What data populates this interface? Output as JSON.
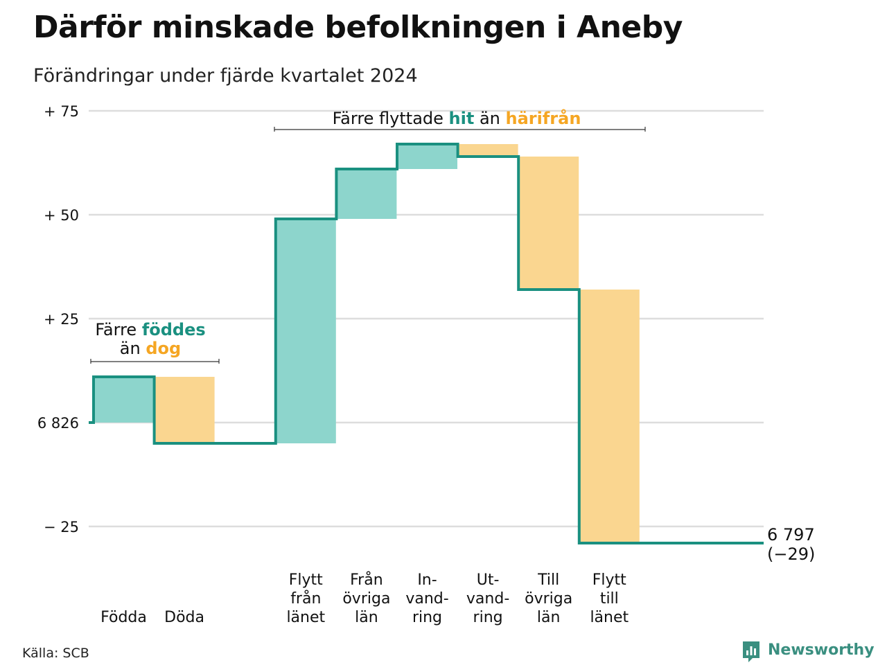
{
  "header": {
    "title": "Därför minskade befolkningen i Aneby",
    "subtitle": "Förändringar under fjärde kvartalet 2024"
  },
  "colors": {
    "increase": "#8dd5cc",
    "decrease": "#fad690",
    "line": "#1a9080",
    "accent_teal": "#1a9080",
    "accent_orange": "#f5a623",
    "grid": "#dddddd"
  },
  "chart_data": {
    "type": "waterfall",
    "baseline": 6826,
    "y_axis": {
      "ylim": [
        -29,
        75
      ],
      "ticks": [
        {
          "value": 75,
          "label": "+ 75"
        },
        {
          "value": 50,
          "label": "+ 50"
        },
        {
          "value": 25,
          "label": "+ 25"
        },
        {
          "value": 0,
          "label": "6 826"
        },
        {
          "value": -25,
          "label": "− 25"
        }
      ]
    },
    "steps": [
      {
        "label_lines": [
          "Födda"
        ],
        "change": 11
      },
      {
        "label_lines": [
          "Döda"
        ],
        "change": -16
      },
      {
        "label_lines": [
          "Flytt",
          "från",
          "länet"
        ],
        "change": 54
      },
      {
        "label_lines": [
          "Från",
          "övriga",
          "län"
        ],
        "change": 12
      },
      {
        "label_lines": [
          "In-",
          "vand-",
          "ring"
        ],
        "change": 6
      },
      {
        "label_lines": [
          "Ut-",
          "vand-",
          "ring"
        ],
        "change": -3
      },
      {
        "label_lines": [
          "Till",
          "övriga",
          "län"
        ],
        "change": -32
      },
      {
        "label_lines": [
          "Flytt",
          "till",
          "länet"
        ],
        "change": -61
      }
    ],
    "end": {
      "value_label": "6 797",
      "change_label": "(−29)"
    },
    "grid": true
  },
  "annotations": {
    "births": {
      "line1_pre": "Färre ",
      "line1_hl": "föddes",
      "line2_pre": "än ",
      "line2_hl": "dog"
    },
    "migration": {
      "pre": "Färre flyttade ",
      "hl1": "hit",
      "mid": " än ",
      "hl2": "härifrån"
    }
  },
  "footer": {
    "source": "Källa: SCB",
    "logo_text": "Newsworthy"
  }
}
